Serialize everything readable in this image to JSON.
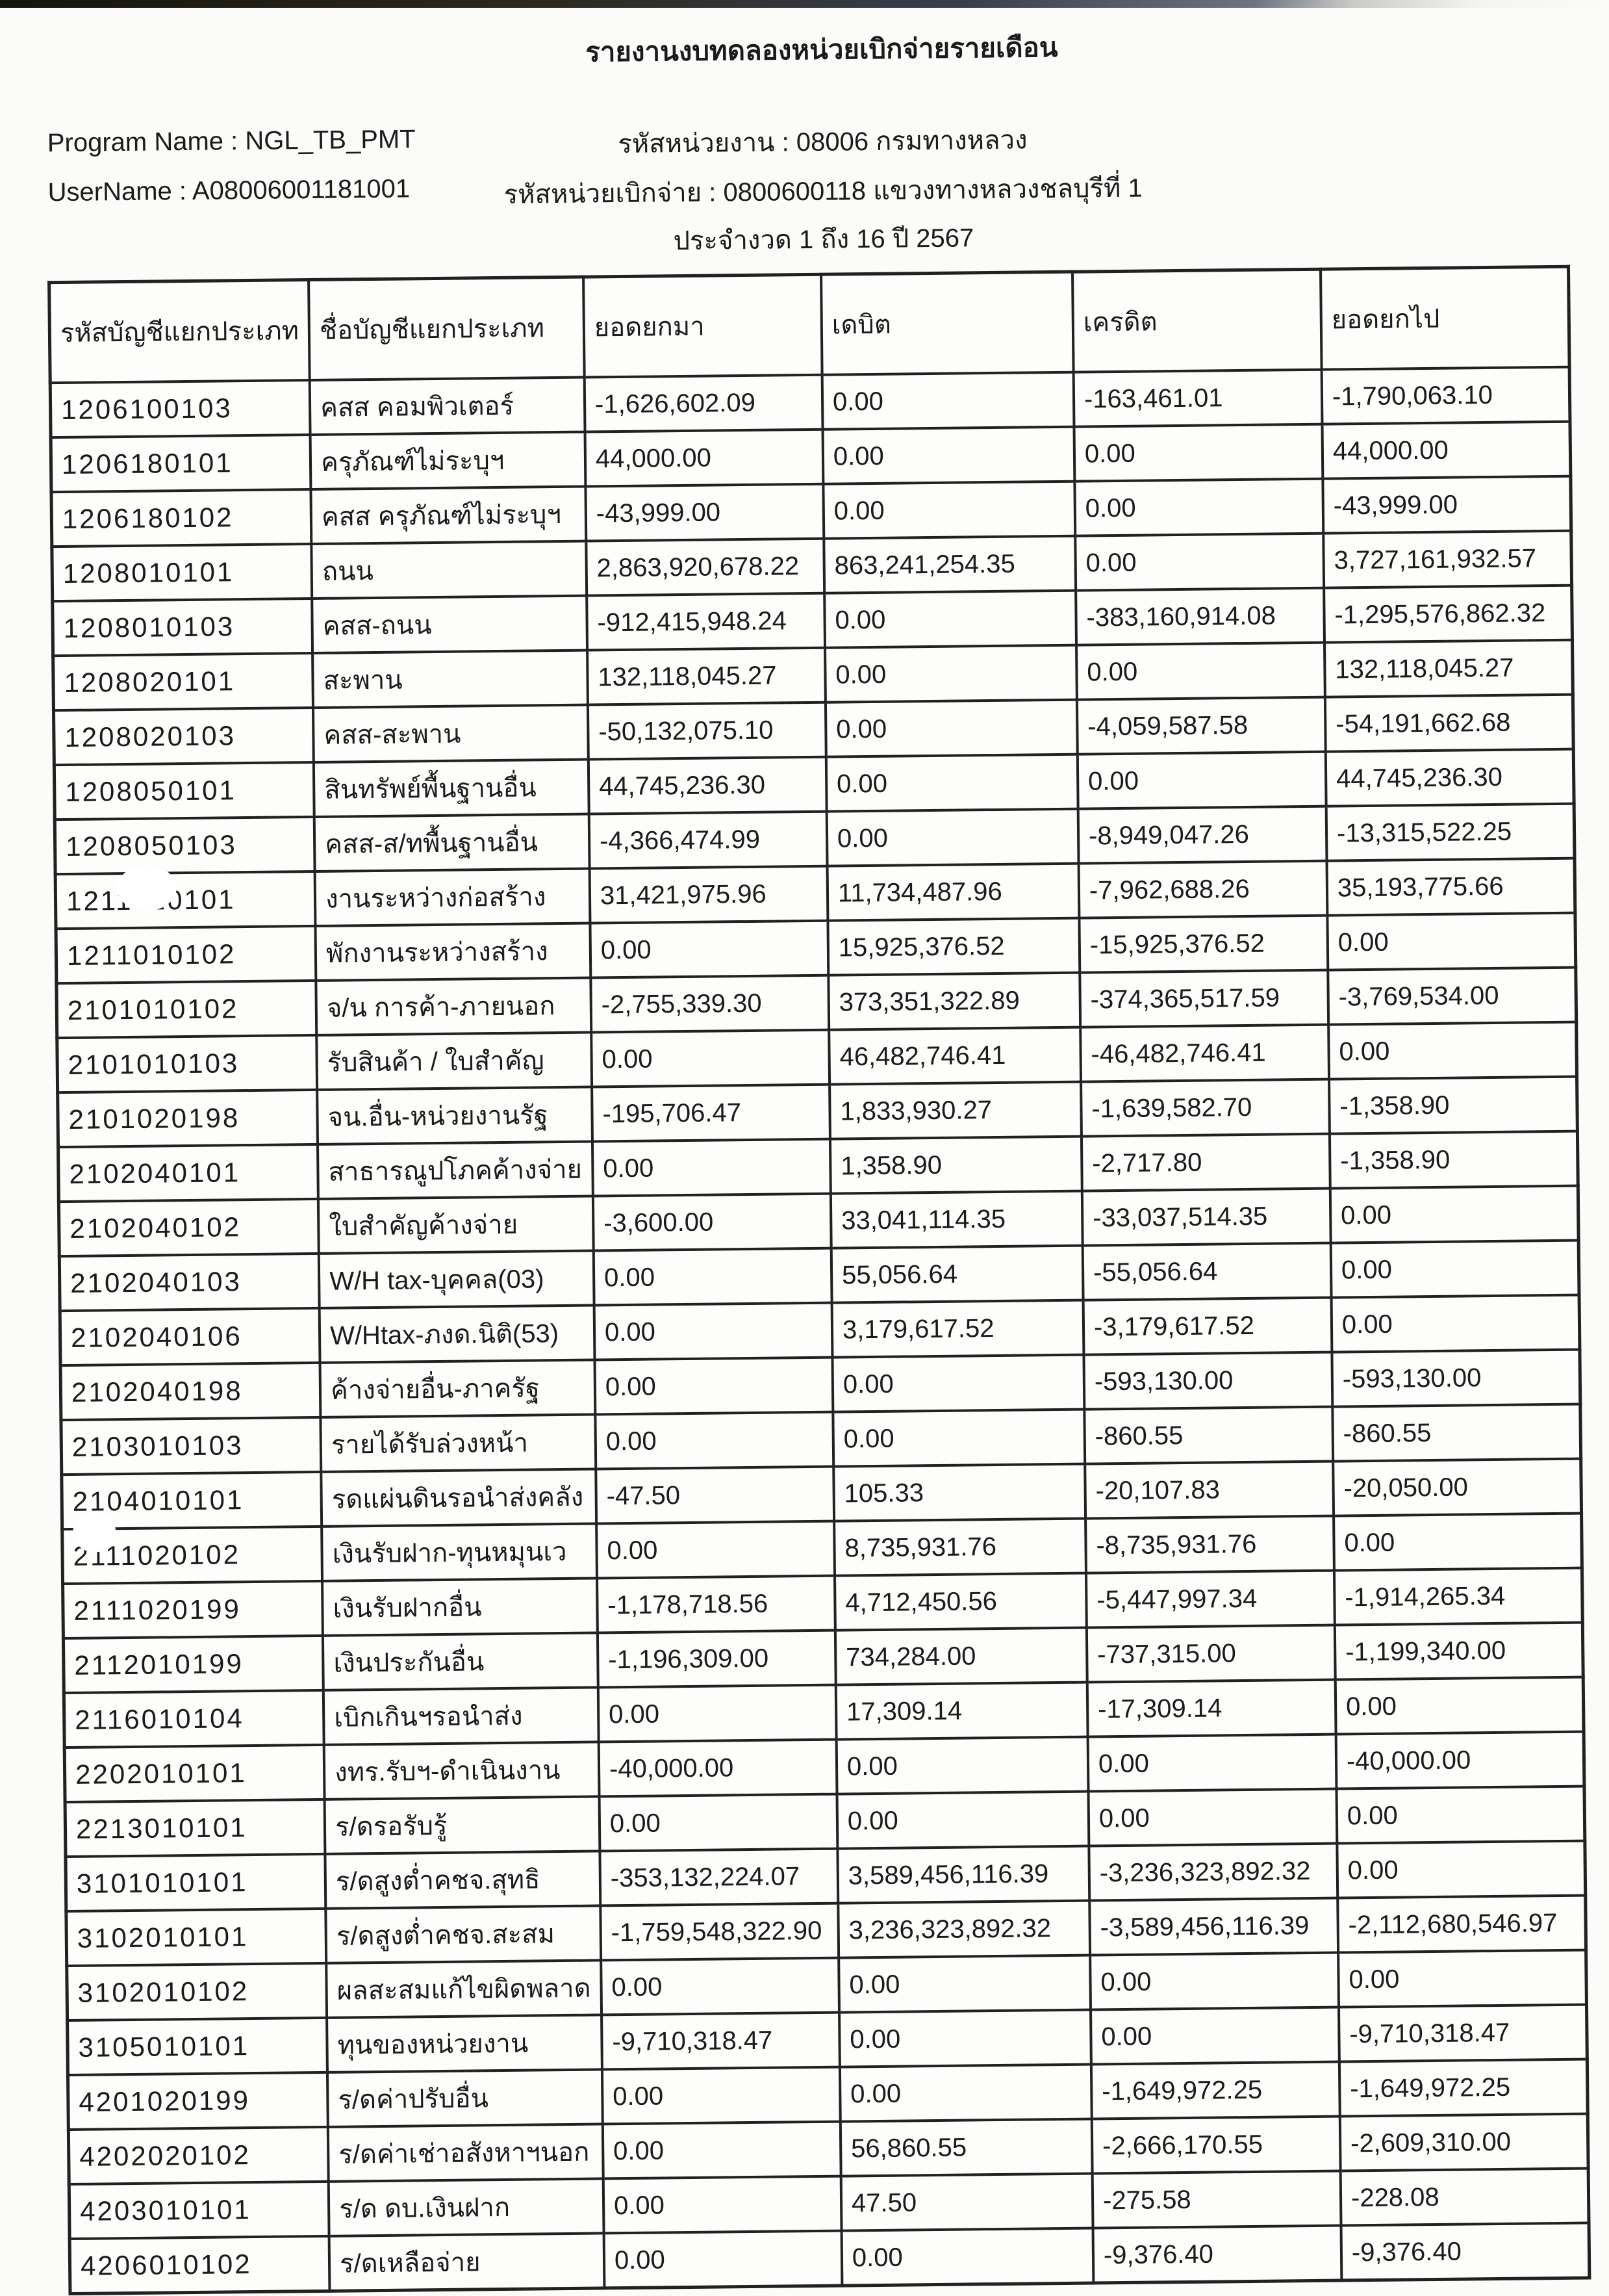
{
  "report": {
    "title": "รายงานงบทดลองหน่วยเบิกจ่ายรายเดือน",
    "program_name_line": "Program Name : NGL_TB_PMT",
    "username_line": "UserName : A08006001181001",
    "agency_line": "รหัสหน่วยงาน : 08006 กรมทางหลวง",
    "disbursement_unit_line": "รหัสหน่วยเบิกจ่าย : 0800600118 แขวงทางหลวงชลบุรีที่ 1",
    "period_line": "ประจำงวด 1 ถึง 16 ปี 2567"
  },
  "table": {
    "columns": [
      "รหัสบัญชีแยกประเภท",
      "ชื่อบัญชีแยกประเภท",
      "ยอดยกมา",
      "เดบิต",
      "เครดิต",
      "ยอดยกไป"
    ],
    "rows": [
      {
        "code": "1206100103",
        "name": "คสส คอมพิวเตอร์",
        "carry_forward": "-1,626,602.09",
        "debit": "0.00",
        "credit": "-163,461.01",
        "carry_out": "-1,790,063.10"
      },
      {
        "code": "1206180101",
        "name": "ครุภัณฑ์ไม่ระบุฯ",
        "carry_forward": "44,000.00",
        "debit": "0.00",
        "credit": "0.00",
        "carry_out": "44,000.00"
      },
      {
        "code": "1206180102",
        "name": "คสส ครุภัณฑ์ไม่ระบุฯ",
        "carry_forward": "-43,999.00",
        "debit": "0.00",
        "credit": "0.00",
        "carry_out": "-43,999.00"
      },
      {
        "code": "1208010101",
        "name": "ถนน",
        "carry_forward": "2,863,920,678.22",
        "debit": "863,241,254.35",
        "credit": "0.00",
        "carry_out": "3,727,161,932.57"
      },
      {
        "code": "1208010103",
        "name": "คสส-ถนน",
        "carry_forward": "-912,415,948.24",
        "debit": "0.00",
        "credit": "-383,160,914.08",
        "carry_out": "-1,295,576,862.32"
      },
      {
        "code": "1208020101",
        "name": "สะพาน",
        "carry_forward": "132,118,045.27",
        "debit": "0.00",
        "credit": "0.00",
        "carry_out": "132,118,045.27"
      },
      {
        "code": "1208020103",
        "name": "คสส-สะพาน",
        "carry_forward": "-50,132,075.10",
        "debit": "0.00",
        "credit": "-4,059,587.58",
        "carry_out": "-54,191,662.68"
      },
      {
        "code": "1208050101",
        "name": "สินทรัพย์พื้นฐานอื่น",
        "carry_forward": "44,745,236.30",
        "debit": "0.00",
        "credit": "0.00",
        "carry_out": "44,745,236.30"
      },
      {
        "code": "1208050103",
        "name": "คสส-ส/ทพื้นฐานอื่น",
        "carry_forward": "-4,366,474.99",
        "debit": "0.00",
        "credit": "-8,949,047.26",
        "carry_out": "-13,315,522.25"
      },
      {
        "code": "1211010101",
        "name": "งานระหว่างก่อสร้าง",
        "carry_forward": "31,421,975.96",
        "debit": "11,734,487.96",
        "credit": "-7,962,688.26",
        "carry_out": "35,193,775.66",
        "whiteout": "a"
      },
      {
        "code": "1211010102",
        "name": "พักงานระหว่างสร้าง",
        "carry_forward": "0.00",
        "debit": "15,925,376.52",
        "credit": "-15,925,376.52",
        "carry_out": "0.00"
      },
      {
        "code": "2101010102",
        "name": "จ/น การค้า-ภายนอก",
        "carry_forward": "-2,755,339.30",
        "debit": "373,351,322.89",
        "credit": "-374,365,517.59",
        "carry_out": "-3,769,534.00"
      },
      {
        "code": "2101010103",
        "name": "รับสินค้า / ใบสำคัญ",
        "carry_forward": "0.00",
        "debit": "46,482,746.41",
        "credit": "-46,482,746.41",
        "carry_out": "0.00"
      },
      {
        "code": "2101020198",
        "name": "จน.อื่น-หน่วยงานรัฐ",
        "carry_forward": "-195,706.47",
        "debit": "1,833,930.27",
        "credit": "-1,639,582.70",
        "carry_out": "-1,358.90"
      },
      {
        "code": "2102040101",
        "name": "สาธารณูปโภคค้างจ่าย",
        "carry_forward": "0.00",
        "debit": "1,358.90",
        "credit": "-2,717.80",
        "carry_out": "-1,358.90"
      },
      {
        "code": "2102040102",
        "name": "ใบสำคัญค้างจ่าย",
        "carry_forward": "-3,600.00",
        "debit": "33,041,114.35",
        "credit": "-33,037,514.35",
        "carry_out": "0.00"
      },
      {
        "code": "2102040103",
        "name": "W/H tax-บุคคล(03)",
        "carry_forward": "0.00",
        "debit": "55,056.64",
        "credit": "-55,056.64",
        "carry_out": "0.00"
      },
      {
        "code": "2102040106",
        "name": "W/Htax-ภงด.นิติ(53)",
        "carry_forward": "0.00",
        "debit": "3,179,617.52",
        "credit": "-3,179,617.52",
        "carry_out": "0.00"
      },
      {
        "code": "2102040198",
        "name": "ค้างจ่ายอื่น-ภาครัฐ",
        "carry_forward": "0.00",
        "debit": "0.00",
        "credit": "-593,130.00",
        "carry_out": "-593,130.00"
      },
      {
        "code": "2103010103",
        "name": "รายได้รับล่วงหน้า",
        "carry_forward": "0.00",
        "debit": "0.00",
        "credit": "-860.55",
        "carry_out": "-860.55"
      },
      {
        "code": "2104010101",
        "name": "รดแผ่นดินรอนำส่งคลัง",
        "carry_forward": "-47.50",
        "debit": "105.33",
        "credit": "-20,107.83",
        "carry_out": "-20,050.00"
      },
      {
        "code": "2111020102",
        "name": "เงินรับฝาก-ทุนหมุนเว",
        "carry_forward": "0.00",
        "debit": "8,735,931.76",
        "credit": "-8,735,931.76",
        "carry_out": "0.00",
        "whiteout": "b"
      },
      {
        "code": "2111020199",
        "name": "เงินรับฝากอื่น",
        "carry_forward": "-1,178,718.56",
        "debit": "4,712,450.56",
        "credit": "-5,447,997.34",
        "carry_out": "-1,914,265.34"
      },
      {
        "code": "2112010199",
        "name": "เงินประกันอื่น",
        "carry_forward": "-1,196,309.00",
        "debit": "734,284.00",
        "credit": "-737,315.00",
        "carry_out": "-1,199,340.00"
      },
      {
        "code": "2116010104",
        "name": "เบิกเกินฯรอนำส่ง",
        "carry_forward": "0.00",
        "debit": "17,309.14",
        "credit": "-17,309.14",
        "carry_out": "0.00"
      },
      {
        "code": "2202010101",
        "name": "งทร.รับฯ-ดำเนินงาน",
        "carry_forward": "-40,000.00",
        "debit": "0.00",
        "credit": "0.00",
        "carry_out": "-40,000.00"
      },
      {
        "code": "2213010101",
        "name": "ร/ดรอรับรู้",
        "carry_forward": "0.00",
        "debit": "0.00",
        "credit": "0.00",
        "carry_out": "0.00"
      },
      {
        "code": "3101010101",
        "name": "ร/ดสูงต่ำคชจ.สุทธิ",
        "carry_forward": "-353,132,224.07",
        "debit": "3,589,456,116.39",
        "credit": "-3,236,323,892.32",
        "carry_out": "0.00"
      },
      {
        "code": "3102010101",
        "name": "ร/ดสูงต่ำคชจ.สะสม",
        "carry_forward": "-1,759,548,322.90",
        "debit": "3,236,323,892.32",
        "credit": "-3,589,456,116.39",
        "carry_out": "-2,112,680,546.97"
      },
      {
        "code": "3102010102",
        "name": "ผลสะสมแก้ไขผิดพลาด",
        "carry_forward": "0.00",
        "debit": "0.00",
        "credit": "0.00",
        "carry_out": "0.00"
      },
      {
        "code": "3105010101",
        "name": "ทุนของหน่วยงาน",
        "carry_forward": "-9,710,318.47",
        "debit": "0.00",
        "credit": "0.00",
        "carry_out": "-9,710,318.47"
      },
      {
        "code": "4201020199",
        "name": "ร/ดค่าปรับอื่น",
        "carry_forward": "0.00",
        "debit": "0.00",
        "credit": "-1,649,972.25",
        "carry_out": "-1,649,972.25"
      },
      {
        "code": "4202020102",
        "name": "ร/ดค่าเช่าอสังหาฯนอก",
        "carry_forward": "0.00",
        "debit": "56,860.55",
        "credit": "-2,666,170.55",
        "carry_out": "-2,609,310.00"
      },
      {
        "code": "4203010101",
        "name": "ร/ด ดบ.เงินฝาก",
        "carry_forward": "0.00",
        "debit": "47.50",
        "credit": "-275.58",
        "carry_out": "-228.08"
      },
      {
        "code": "4206010102",
        "name": "ร/ดเหลือจ่าย",
        "carry_forward": "0.00",
        "debit": "0.00",
        "credit": "-9,376.40",
        "carry_out": "-9,376.40"
      }
    ]
  }
}
